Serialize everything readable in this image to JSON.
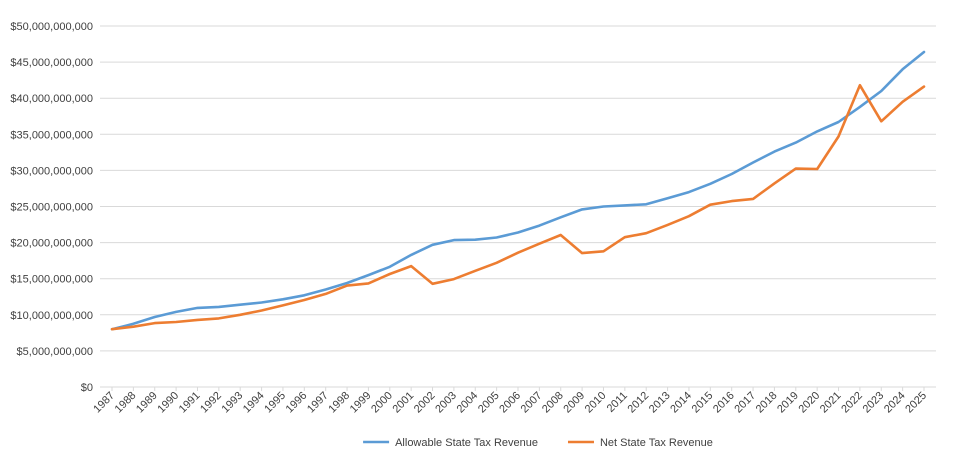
{
  "chart_data": {
    "type": "line",
    "title": "",
    "xlabel": "",
    "ylabel": "",
    "x": [
      "1987",
      "1988",
      "1989",
      "1990",
      "1991",
      "1992",
      "1993",
      "1994",
      "1995",
      "1996",
      "1997",
      "1998",
      "1999",
      "2000",
      "2001",
      "2002",
      "2003",
      "2004",
      "2005",
      "2006",
      "2007",
      "2008",
      "2009",
      "2010",
      "2011",
      "2012",
      "2013",
      "2014",
      "2015",
      "2016",
      "2017",
      "2018",
      "2019",
      "2020",
      "2021",
      "2022",
      "2023",
      "2024",
      "2025"
    ],
    "ylim": [
      0,
      50000000000
    ],
    "yticks": [
      0,
      5000000000,
      10000000000,
      15000000000,
      20000000000,
      25000000000,
      30000000000,
      35000000000,
      40000000000,
      45000000000,
      50000000000
    ],
    "ytick_labels": [
      "$0",
      "$5,000,000,000",
      "$10,000,000,000",
      "$15,000,000,000",
      "$20,000,000,000",
      "$25,000,000,000",
      "$30,000,000,000",
      "$35,000,000,000",
      "$40,000,000,000",
      "$45,000,000,000",
      "$50,000,000,000"
    ],
    "grid": true,
    "legend_position": "bottom",
    "series": [
      {
        "name": "Allowable State Tax Revenue",
        "color": "#5b9bd5",
        "values": [
          8000000000,
          8750000000,
          9700000000,
          10400000000,
          10950000000,
          11100000000,
          11400000000,
          11700000000,
          12150000000,
          12700000000,
          13500000000,
          14400000000,
          15500000000,
          16650000000,
          18300000000,
          19700000000,
          20350000000,
          20400000000,
          20700000000,
          21400000000,
          22350000000,
          23500000000,
          24600000000,
          25000000000,
          25150000000,
          25300000000,
          26150000000,
          27000000000,
          28150000000,
          29500000000,
          31100000000,
          32600000000,
          33850000000,
          35400000000,
          36700000000,
          38800000000,
          41000000000,
          44000000000,
          46400000000
        ]
      },
      {
        "name": "Net State Tax Revenue",
        "color": "#ed7d31",
        "values": [
          8000000000,
          8350000000,
          8850000000,
          9000000000,
          9300000000,
          9500000000,
          10000000000,
          10600000000,
          11300000000,
          12050000000,
          12900000000,
          14050000000,
          14350000000,
          15650000000,
          16750000000,
          14300000000,
          14950000000,
          16100000000,
          17200000000,
          18600000000,
          19850000000,
          21050000000,
          18550000000,
          18800000000,
          20750000000,
          21300000000,
          22450000000,
          23650000000,
          25250000000,
          25750000000,
          26050000000,
          28200000000,
          30250000000,
          30200000000,
          34700000000,
          41800000000,
          36800000000,
          39500000000,
          41600000000
        ]
      }
    ]
  }
}
